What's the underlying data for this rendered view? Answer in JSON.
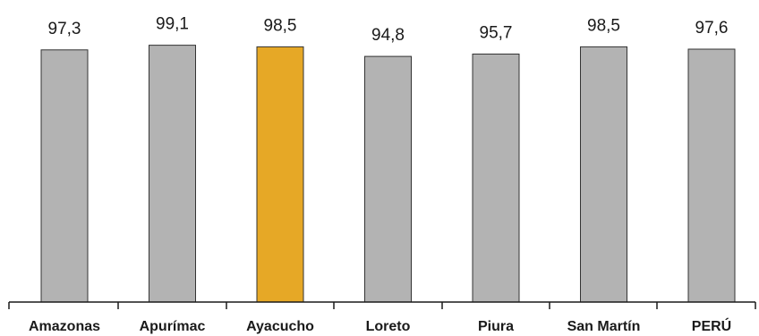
{
  "chart_data": {
    "type": "bar",
    "title": "",
    "xlabel": "",
    "ylabel": "",
    "categories": [
      "Amazonas",
      "Apurímac",
      "Ayacucho",
      "Loreto",
      "Piura",
      "San Martín",
      "PERÚ"
    ],
    "values": [
      97.3,
      99.1,
      98.5,
      94.8,
      95.7,
      98.5,
      97.6
    ],
    "value_labels": [
      "97,3",
      "99,1",
      "98,5",
      "94,8",
      "95,7",
      "98,5",
      "97,6"
    ],
    "highlight_index": 2,
    "ylim": [
      0,
      100
    ],
    "grid": false,
    "legend": "none",
    "colors": {
      "default_bar": "#b3b3b3",
      "highlight_bar": "#e6a826",
      "bar_border": "#333333",
      "text": "#1a1a1a"
    }
  }
}
